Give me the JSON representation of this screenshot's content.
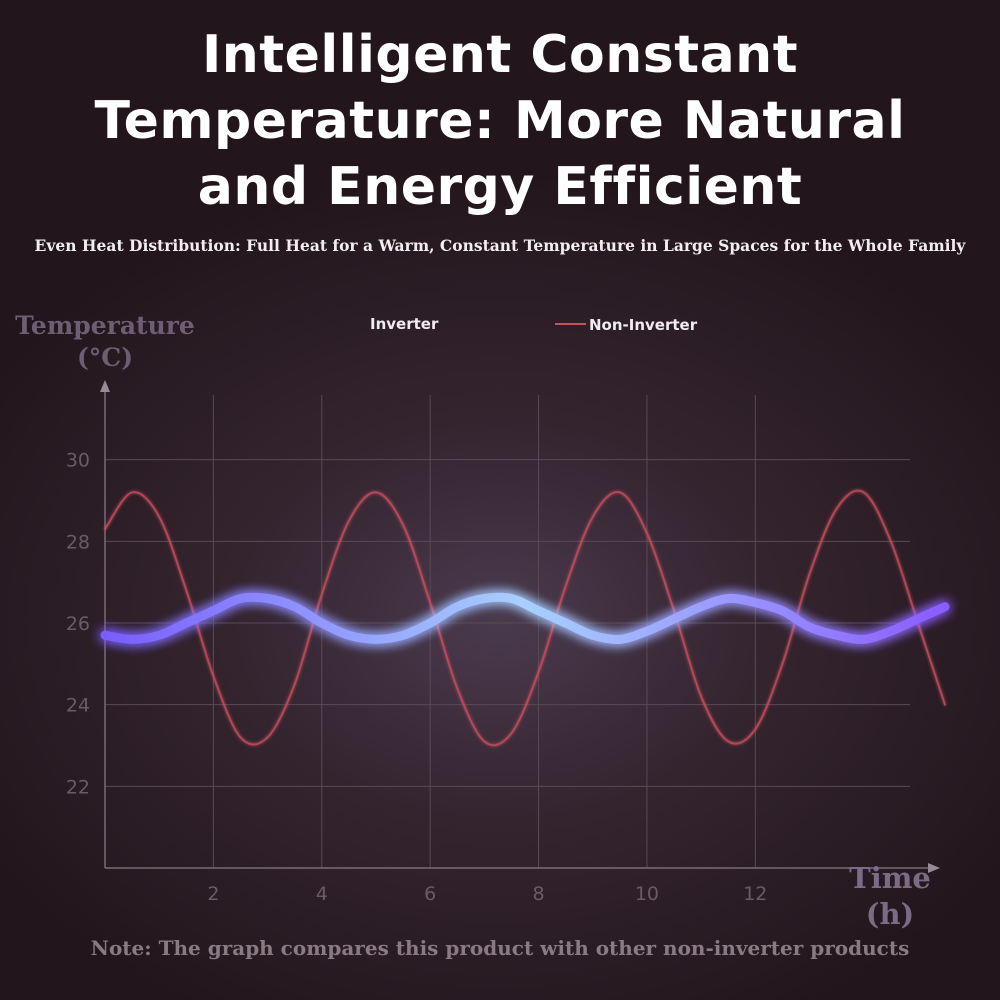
{
  "chart_data": {
    "type": "line",
    "title": "Intelligent Constant Temperature: More Natural and Energy Efficient",
    "subtitle": "Even Heat Distribution: Full Heat for a Warm, Constant Temperature in Large Spaces for the Whole Family",
    "y_label": "Temperature (°C)",
    "x_label": "Time (h)",
    "note": "Note: The graph compares this product with other non-inverter products",
    "x": [
      0,
      0.5,
      1,
      1.5,
      2,
      2.5,
      3,
      3.5,
      4,
      4.5,
      5,
      5.5,
      6,
      6.5,
      7,
      7.5,
      8,
      8.5,
      9,
      9.5,
      10,
      10.5,
      11,
      11.5,
      12,
      12.5,
      13,
      13.5,
      14,
      14.5,
      15,
      15.5
    ],
    "series": [
      {
        "name": "Inverter",
        "color": "#8fb8ff",
        "values": [
          25.7,
          25.6,
          25.7,
          26.0,
          26.3,
          26.6,
          26.6,
          26.4,
          26.0,
          25.7,
          25.6,
          25.7,
          26.0,
          26.4,
          26.6,
          26.6,
          26.3,
          26.0,
          25.7,
          25.6,
          25.8,
          26.1,
          26.4,
          26.6,
          26.5,
          26.3,
          25.9,
          25.7,
          25.6,
          25.8,
          26.1,
          26.4
        ]
      },
      {
        "name": "Non-Inverter",
        "color": "#c8505e",
        "values": [
          28.3,
          29.2,
          28.6,
          26.8,
          24.7,
          23.2,
          23.2,
          24.5,
          26.7,
          28.5,
          29.2,
          28.4,
          26.5,
          24.4,
          23.1,
          23.3,
          24.8,
          26.9,
          28.6,
          29.2,
          28.2,
          26.3,
          24.2,
          23.1,
          23.4,
          25.0,
          27.2,
          28.8,
          29.2,
          28.0,
          26.0,
          24.0
        ]
      }
    ],
    "xlim": [
      0,
      15.5
    ],
    "ylim": [
      20,
      32
    ],
    "xticks": [
      2,
      4,
      6,
      8,
      10,
      12
    ],
    "yticks": [
      22,
      24,
      26,
      28,
      30
    ],
    "grid": true
  }
}
